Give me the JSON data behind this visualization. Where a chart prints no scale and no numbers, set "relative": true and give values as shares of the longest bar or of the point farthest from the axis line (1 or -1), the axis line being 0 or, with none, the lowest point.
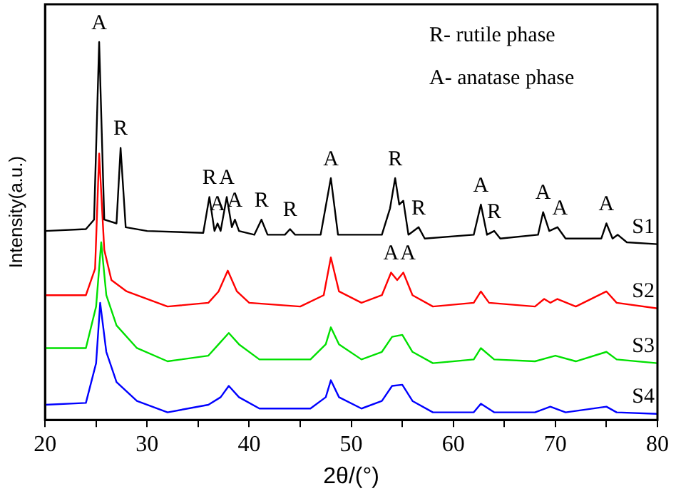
{
  "chart_data": {
    "type": "line",
    "xlabel": "2θ/(°)",
    "ylabel": "Intensity(a.u.)",
    "relative": true,
    "xlim": [
      20,
      80
    ],
    "xticks": [
      20,
      {
        "value": 25,
        "label": null
      },
      30,
      {
        "value": 35,
        "label": null
      },
      40,
      {
        "value": 45,
        "label": null
      },
      50,
      {
        "value": 55,
        "label": null
      },
      60,
      {
        "value": 65,
        "label": null
      },
      70,
      {
        "value": 75,
        "label": null
      },
      80
    ],
    "series": [
      {
        "name": "S1",
        "color": "#000000",
        "x": [
          20,
          24,
          24.8,
          25.3,
          25.8,
          27,
          27.4,
          27.9,
          30,
          35.5,
          36.1,
          36.6,
          36.9,
          37.2,
          37.8,
          38.3,
          38.6,
          39,
          40.5,
          41.2,
          41.8,
          43.5,
          44,
          44.5,
          47,
          48,
          48.7,
          53,
          53.8,
          54.3,
          54.7,
          55.1,
          55.6,
          56.6,
          57.2,
          62,
          62.7,
          63.3,
          64,
          64.6,
          68.3,
          68.8,
          69.4,
          70.2,
          71,
          74.5,
          75,
          75.6,
          76.1,
          77,
          80
        ],
        "values": [
          0.5,
          0.505,
          0.53,
          1,
          0.53,
          0.52,
          0.72,
          0.51,
          0.5,
          0.495,
          0.59,
          0.5,
          0.52,
          0.5,
          0.59,
          0.51,
          0.53,
          0.5,
          0.49,
          0.53,
          0.49,
          0.49,
          0.505,
          0.49,
          0.49,
          0.64,
          0.49,
          0.49,
          0.56,
          0.64,
          0.57,
          0.58,
          0.49,
          0.51,
          0.48,
          0.49,
          0.57,
          0.49,
          0.5,
          0.48,
          0.49,
          0.55,
          0.5,
          0.51,
          0.48,
          0.48,
          0.52,
          0.48,
          0.49,
          0.47,
          0.465
        ]
      },
      {
        "name": "S2",
        "color": "#ff0000",
        "x": [
          20,
          24,
          24.9,
          25.3,
          25.8,
          26.5,
          28,
          32,
          36,
          37,
          37.9,
          38.8,
          40,
          45,
          47.3,
          48,
          48.8,
          51,
          53,
          53.9,
          54.5,
          55.1,
          56,
          58,
          62,
          62.7,
          63.5,
          68,
          68.9,
          69.5,
          70.2,
          72,
          75,
          76,
          80
        ],
        "values": [
          0.33,
          0.33,
          0.4,
          0.705,
          0.45,
          0.37,
          0.34,
          0.3,
          0.31,
          0.34,
          0.395,
          0.34,
          0.31,
          0.3,
          0.33,
          0.43,
          0.34,
          0.31,
          0.33,
          0.39,
          0.37,
          0.39,
          0.33,
          0.3,
          0.31,
          0.34,
          0.31,
          0.3,
          0.32,
          0.31,
          0.32,
          0.3,
          0.34,
          0.31,
          0.295
        ]
      },
      {
        "name": "S3",
        "color": "#00e000",
        "x": [
          20,
          24,
          25,
          25.5,
          26,
          27,
          29,
          32,
          36,
          37,
          38,
          39,
          41,
          46,
          47.5,
          48,
          48.8,
          51,
          53,
          54,
          55,
          56,
          58,
          62,
          62.7,
          64,
          68,
          70,
          72,
          75,
          76,
          80
        ],
        "values": [
          0.19,
          0.19,
          0.3,
          0.47,
          0.33,
          0.25,
          0.19,
          0.155,
          0.17,
          0.2,
          0.23,
          0.2,
          0.16,
          0.16,
          0.2,
          0.245,
          0.2,
          0.16,
          0.18,
          0.22,
          0.225,
          0.18,
          0.15,
          0.16,
          0.19,
          0.16,
          0.155,
          0.17,
          0.155,
          0.18,
          0.16,
          0.15
        ]
      },
      {
        "name": "S4",
        "color": "#0000ff",
        "x": [
          20,
          24,
          25,
          25.4,
          26,
          27,
          29,
          32,
          36,
          37.2,
          38,
          39,
          41,
          46,
          47.5,
          48,
          48.8,
          51,
          53,
          54,
          55,
          56,
          58,
          62,
          62.7,
          64,
          68,
          69.5,
          71,
          75,
          76,
          80
        ],
        "values": [
          0.04,
          0.045,
          0.15,
          0.31,
          0.18,
          0.1,
          0.05,
          0.02,
          0.04,
          0.06,
          0.09,
          0.06,
          0.03,
          0.03,
          0.06,
          0.105,
          0.06,
          0.03,
          0.05,
          0.09,
          0.093,
          0.05,
          0.02,
          0.02,
          0.043,
          0.02,
          0.02,
          0.035,
          0.02,
          0.035,
          0.02,
          0.016
        ]
      }
    ],
    "annotations": [
      "R- rutile phase",
      "A- anatase phase",
      {
        "text": "A",
        "x": 25.3,
        "y": 1
      },
      {
        "text": "R",
        "x": 27.4,
        "y": 0.72
      },
      {
        "text": "A",
        "x": 36.9,
        "y": 0.52
      },
      {
        "text": "A",
        "x": 38.6,
        "y": 0.53
      },
      {
        "text": "R",
        "x": 36.1,
        "y": 0.59
      },
      {
        "text": "A",
        "x": 37.8,
        "y": 0.59
      },
      {
        "text": "R",
        "x": 41.2,
        "y": 0.53
      },
      {
        "text": "R",
        "x": 44,
        "y": 0.505
      },
      {
        "text": "A",
        "x": 48,
        "y": 0.64
      },
      {
        "text": "R",
        "x": 54.3,
        "y": 0.64
      },
      {
        "text": "R",
        "x": 56.6,
        "y": 0.51
      },
      {
        "text": "A",
        "x": 62.7,
        "y": 0.57
      },
      {
        "text": "R",
        "x": 64,
        "y": 0.5
      },
      {
        "text": "A",
        "x": 68.8,
        "y": 0.55
      },
      {
        "text": "A",
        "x": 70.2,
        "y": 0.51
      },
      {
        "text": "A",
        "x": 75,
        "y": 0.52
      },
      {
        "text": "A",
        "x": 53.9,
        "y": 0.39
      },
      {
        "text": "A",
        "x": 55.1,
        "y": 0.39
      }
    ]
  }
}
